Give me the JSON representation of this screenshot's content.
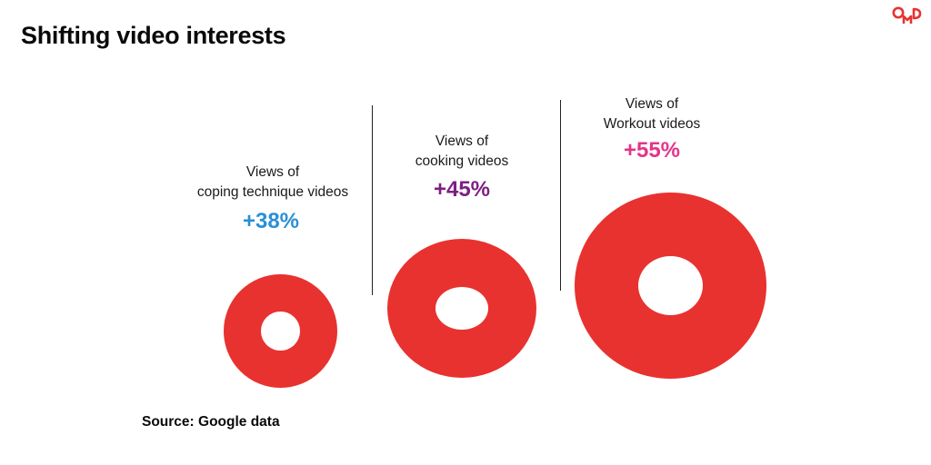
{
  "title": "Shifting video interests",
  "brand": {
    "logo_text": "OMD",
    "color": "#e8322f"
  },
  "ring_color": "#e8322f",
  "stats": [
    {
      "line1": "Views of",
      "line2": "coping technique videos",
      "value": "+38%",
      "color": "#2a8fd6"
    },
    {
      "line1": "Views of",
      "line2": "cooking videos",
      "value": "+45%",
      "color": "#7d1f82"
    },
    {
      "line1": "Views of",
      "line2": "Workout videos",
      "value": "+55%",
      "color": "#e5338b"
    }
  ],
  "source": "Source: Google data"
}
